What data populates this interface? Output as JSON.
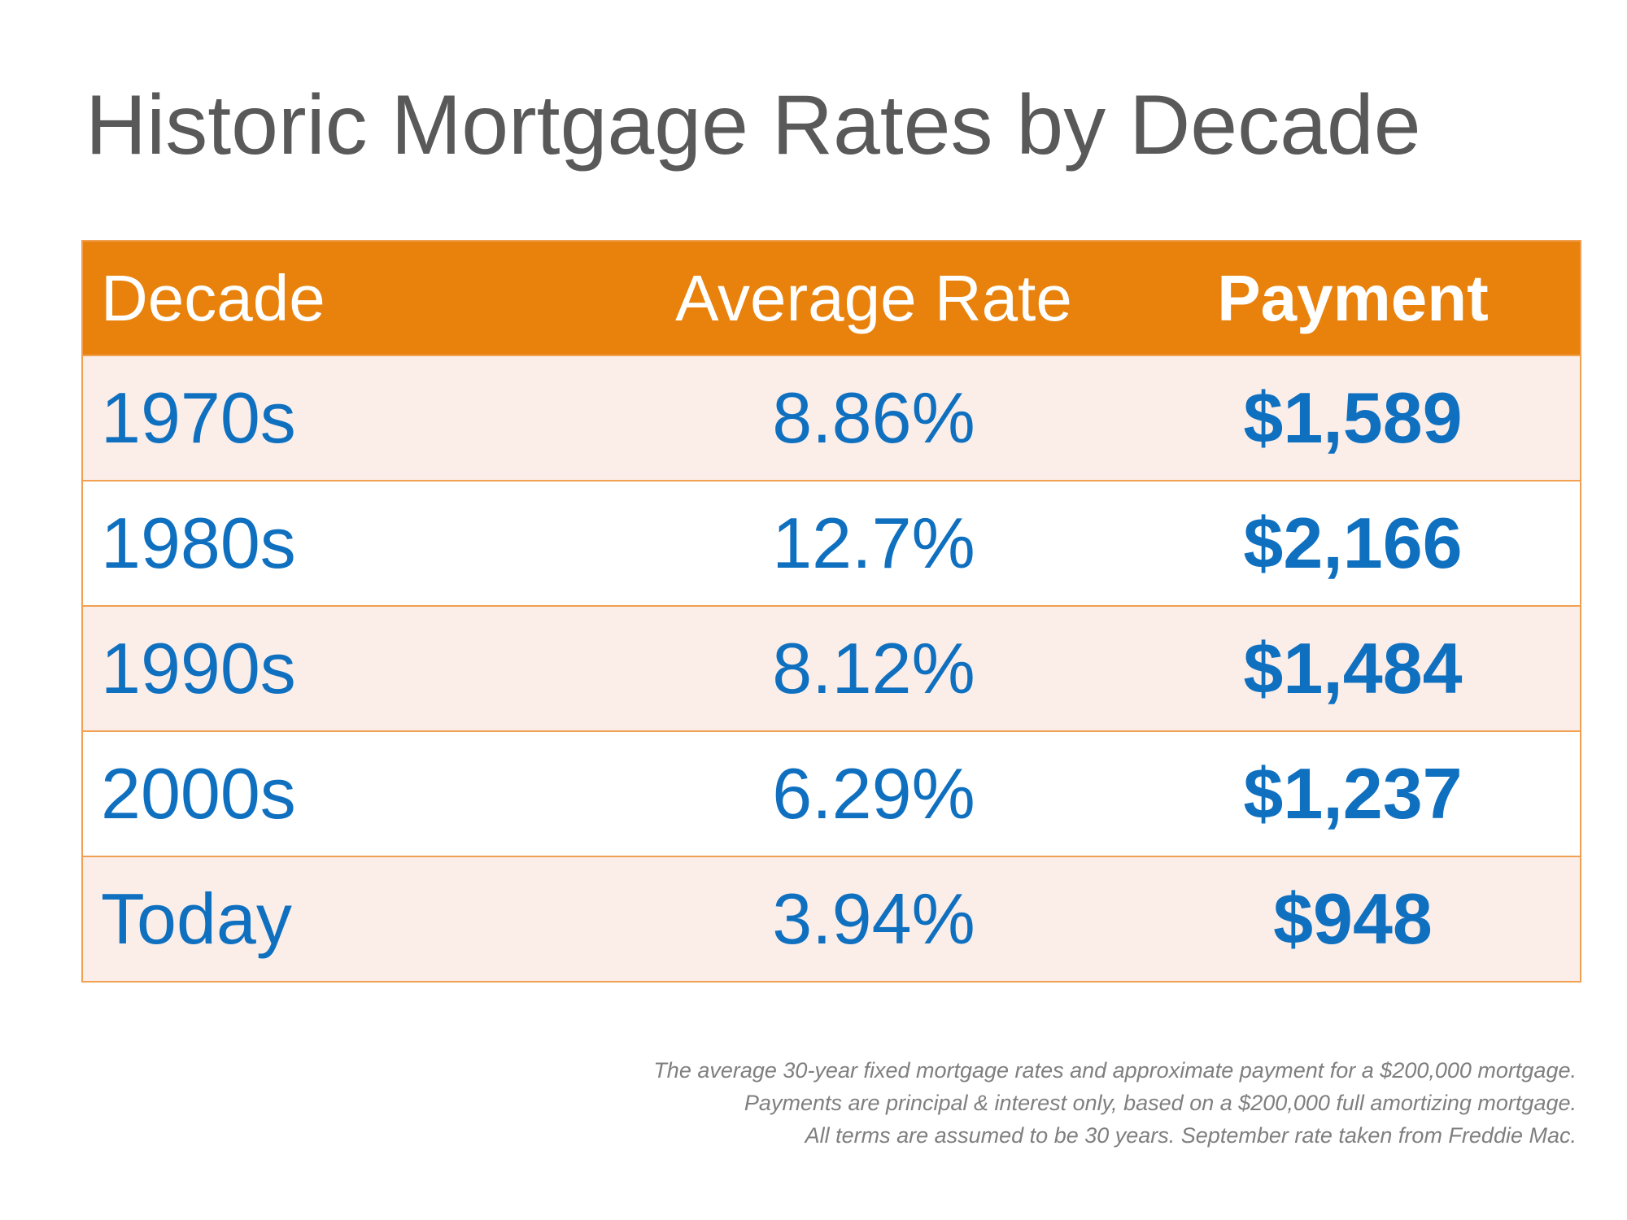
{
  "header": {
    "title": "Historic Mortgage Rates by Decade"
  },
  "table": {
    "columns": [
      "Decade",
      "Average Rate",
      "Payment"
    ],
    "rows": [
      [
        "1970s",
        "8.86%",
        "$1,589"
      ],
      [
        "1980s",
        "12.7%",
        "$2,166"
      ],
      [
        "1990s",
        "8.12%",
        "$1,484"
      ],
      [
        "2000s",
        "6.29%",
        "$1,237"
      ],
      [
        "Today",
        "3.94%",
        "$948"
      ]
    ]
  },
  "footnote": {
    "lines": [
      "The average 30-year fixed mortgage rates and approximate payment for a $200,000 mortgage.",
      "Payments are principal & interest only, based on a $200,000 full amortizing mortgage.",
      "All terms are assumed to be 30 years. September rate taken from Freddie Mac."
    ]
  }
}
